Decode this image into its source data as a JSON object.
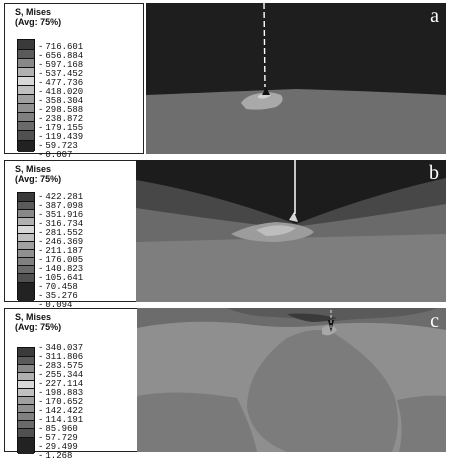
{
  "panels": [
    {
      "label": "a",
      "legend_title": "S, Mises\n(Avg: 75%)",
      "values": [
        "716.601",
        "656.884",
        "597.168",
        "537.452",
        "477.736",
        "418.020",
        "358.304",
        "298.588",
        "238.872",
        "179.155",
        "119.439",
        "59.723",
        "0.007"
      ]
    },
    {
      "label": "b",
      "legend_title": "S, Mises\n(Avg: 75%)",
      "values": [
        "422.281",
        "387.098",
        "351.916",
        "316.734",
        "281.552",
        "246.369",
        "211.187",
        "176.005",
        "140.823",
        "105.641",
        "70.458",
        "35.276",
        "0.094"
      ]
    },
    {
      "label": "c",
      "legend_title": "S, Mises\n(Avg: 75%)",
      "values": [
        "340.037",
        "311.806",
        "283.575",
        "255.344",
        "227.114",
        "198.883",
        "170.652",
        "142.422",
        "114.191",
        "85.960",
        "57.729",
        "29.499",
        "1.268"
      ]
    }
  ],
  "colors": {
    "dark": "#1e1e1e",
    "mid_dark": "#474747",
    "mid": "#6a6a6a",
    "light": "#8e8e8e",
    "lighter": "#a9a9a9"
  }
}
